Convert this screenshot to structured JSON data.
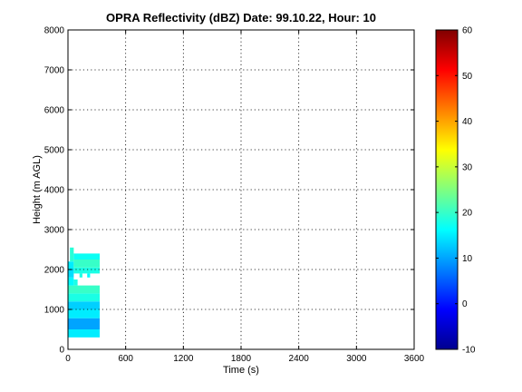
{
  "chart_data": {
    "type": "heatmap",
    "title": "OPRA Reflectivity (dBZ)  Date: 99.10.22, Hour: 10",
    "xlabel": "Time (s)",
    "ylabel": "Height (m AGL)",
    "xlim": [
      0,
      3600
    ],
    "ylim": [
      0,
      8000
    ],
    "x_ticks": [
      "0",
      "600",
      "1200",
      "1800",
      "2400",
      "3000",
      "3600"
    ],
    "y_ticks": [
      "0",
      "1000",
      "2000",
      "3000",
      "4000",
      "5000",
      "6000",
      "7000",
      "8000"
    ],
    "grid": true,
    "colorbar": {
      "colormap": "jet",
      "range": [
        -10,
        60
      ],
      "ticks": [
        "-10",
        "0",
        "10",
        "20",
        "30",
        "40",
        "50",
        "60"
      ]
    },
    "cells": [
      {
        "x0": 0,
        "x1": 330,
        "y0": 300,
        "y1": 500,
        "dbz": 15
      },
      {
        "x0": 0,
        "x1": 330,
        "y0": 500,
        "y1": 780,
        "dbz": 10
      },
      {
        "x0": 0,
        "x1": 330,
        "y0": 780,
        "y1": 1000,
        "dbz": 15
      },
      {
        "x0": 0,
        "x1": 330,
        "y0": 1000,
        "y1": 1200,
        "dbz": 13
      },
      {
        "x0": 0,
        "x1": 330,
        "y0": 1200,
        "y1": 1400,
        "dbz": 18
      },
      {
        "x0": 0,
        "x1": 330,
        "y0": 1400,
        "y1": 1600,
        "dbz": 20
      },
      {
        "x0": 0,
        "x1": 60,
        "y0": 1600,
        "y1": 1800,
        "dbz": 16
      },
      {
        "x0": 0,
        "x1": 60,
        "y0": 1800,
        "y1": 2000,
        "dbz": 14
      },
      {
        "x0": 0,
        "x1": 60,
        "y0": 2000,
        "y1": 2200,
        "dbz": 15
      },
      {
        "x0": 60,
        "x1": 100,
        "y0": 1600,
        "y1": 1750,
        "dbz": 18
      },
      {
        "x0": 60,
        "x1": 330,
        "y0": 1900,
        "y1": 2050,
        "dbz": 18
      },
      {
        "x0": 60,
        "x1": 330,
        "y0": 2050,
        "y1": 2250,
        "dbz": 20
      },
      {
        "x0": 60,
        "x1": 330,
        "y0": 2250,
        "y1": 2400,
        "dbz": 17
      },
      {
        "x0": 20,
        "x1": 60,
        "y0": 2200,
        "y1": 2550,
        "dbz": 19
      },
      {
        "x0": 120,
        "x1": 150,
        "y0": 1800,
        "y1": 1900,
        "dbz": 18
      },
      {
        "x0": 200,
        "x1": 230,
        "y0": 1800,
        "y1": 1900,
        "dbz": 16
      }
    ]
  }
}
